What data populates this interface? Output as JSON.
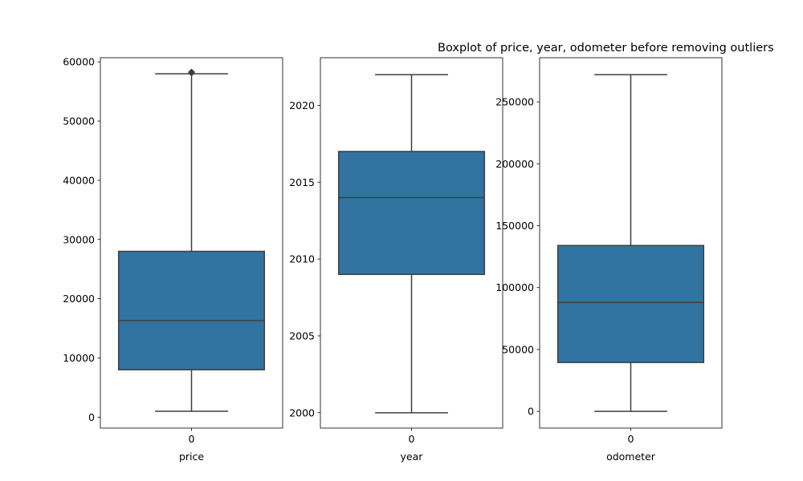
{
  "figure": {
    "title": "Boxplot of price, year, odometer before removing outliers",
    "box_color": "#3274a1",
    "line_color": "#3f3f3f"
  },
  "chart_data": [
    {
      "type": "boxplot",
      "xlabel": "price",
      "categories": [
        "0"
      ],
      "ylim": [
        -1850,
        60700
      ],
      "yticks": [
        0,
        10000,
        20000,
        30000,
        40000,
        50000,
        60000
      ],
      "box": {
        "whisker_low": 1000,
        "q1": 8000,
        "median": 16300,
        "q3": 28000,
        "whisker_high": 58000
      },
      "outliers": [
        58100,
        58200,
        58300
      ]
    },
    {
      "type": "boxplot",
      "xlabel": "year",
      "categories": [
        "0"
      ],
      "ylim": [
        1999,
        2023.1
      ],
      "yticks": [
        2000,
        2005,
        2010,
        2015,
        2020
      ],
      "box": {
        "whisker_low": 2000,
        "q1": 2009,
        "median": 2014,
        "q3": 2017,
        "whisker_high": 2022
      },
      "outliers": []
    },
    {
      "type": "boxplot",
      "xlabel": "odometer",
      "categories": [
        "0"
      ],
      "ylim": [
        -13500,
        285700
      ],
      "yticks": [
        0,
        50000,
        100000,
        150000,
        200000,
        250000
      ],
      "box": {
        "whisker_low": 0,
        "q1": 39500,
        "median": 88000,
        "q3": 134000,
        "whisker_high": 272000
      },
      "outliers": []
    }
  ]
}
